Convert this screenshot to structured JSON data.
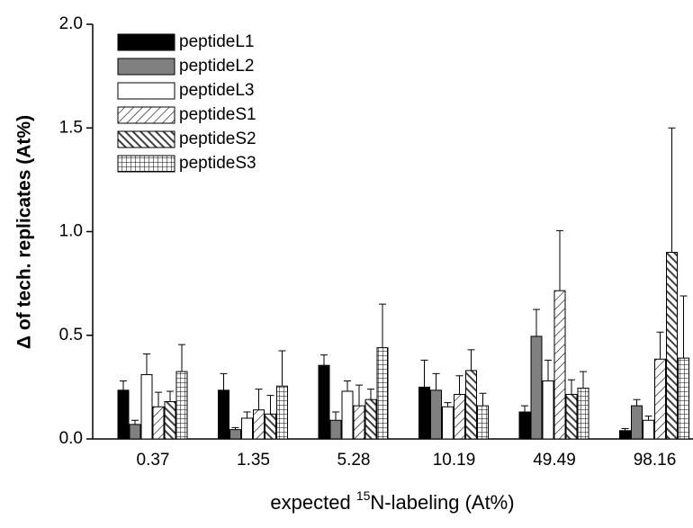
{
  "chart_data": {
    "type": "bar",
    "x_label_prefix": "expected ",
    "x_label_sup": "15",
    "x_label_rest": "N-labeling (At%)",
    "y_label": "Δ of tech. replicates (At%)",
    "categories": [
      "0.37",
      "1.35",
      "5.28",
      "10.19",
      "49.49",
      "98.16"
    ],
    "ylim": [
      0,
      2.0
    ],
    "yticks": [
      {
        "value": 0,
        "label": "0.0"
      },
      0.5,
      {
        "value": 1,
        "label": "1.0"
      },
      1.5,
      {
        "value": 2,
        "label": "2.0"
      }
    ],
    "legend": "upper left",
    "series": [
      {
        "name": "peptideL1",
        "color": "#000000",
        "hatch": "solid",
        "values": [
          0.235,
          0.235,
          0.355,
          0.25,
          0.13,
          0.04
        ],
        "errors": [
          0.045,
          0.08,
          0.05,
          0.13,
          0.03,
          0.01
        ]
      },
      {
        "name": "peptideL2",
        "color": "#808080",
        "hatch": "solid",
        "values": [
          0.07,
          0.045,
          0.09,
          0.235,
          0.495,
          0.16
        ],
        "errors": [
          0.02,
          0.01,
          0.04,
          0.08,
          0.13,
          0.03
        ]
      },
      {
        "name": "peptideL3",
        "color": "#ffffff",
        "hatch": "solid",
        "values": [
          0.31,
          0.1,
          0.23,
          0.155,
          0.28,
          0.09
        ],
        "errors": [
          0.1,
          0.03,
          0.05,
          0.02,
          0.1,
          0.02
        ]
      },
      {
        "name": "peptideS1",
        "color": "#ffffff",
        "hatch": "diagonal",
        "values": [
          0.155,
          0.14,
          0.16,
          0.215,
          0.715,
          0.385
        ],
        "errors": [
          0.07,
          0.1,
          0.1,
          0.09,
          0.29,
          0.13
        ]
      },
      {
        "name": "peptideS2",
        "color": "#404040",
        "hatch": "backdiagonal",
        "values": [
          0.18,
          0.12,
          0.19,
          0.33,
          0.215,
          0.9
        ],
        "errors": [
          0.05,
          0.09,
          0.05,
          0.1,
          0.07,
          0.6
        ]
      },
      {
        "name": "peptideS3",
        "color": "#ffffff",
        "hatch": "grid",
        "values": [
          0.325,
          0.255,
          0.44,
          0.16,
          0.245,
          0.39
        ],
        "errors": [
          0.13,
          0.17,
          0.21,
          0.06,
          0.08,
          0.3
        ]
      }
    ]
  }
}
